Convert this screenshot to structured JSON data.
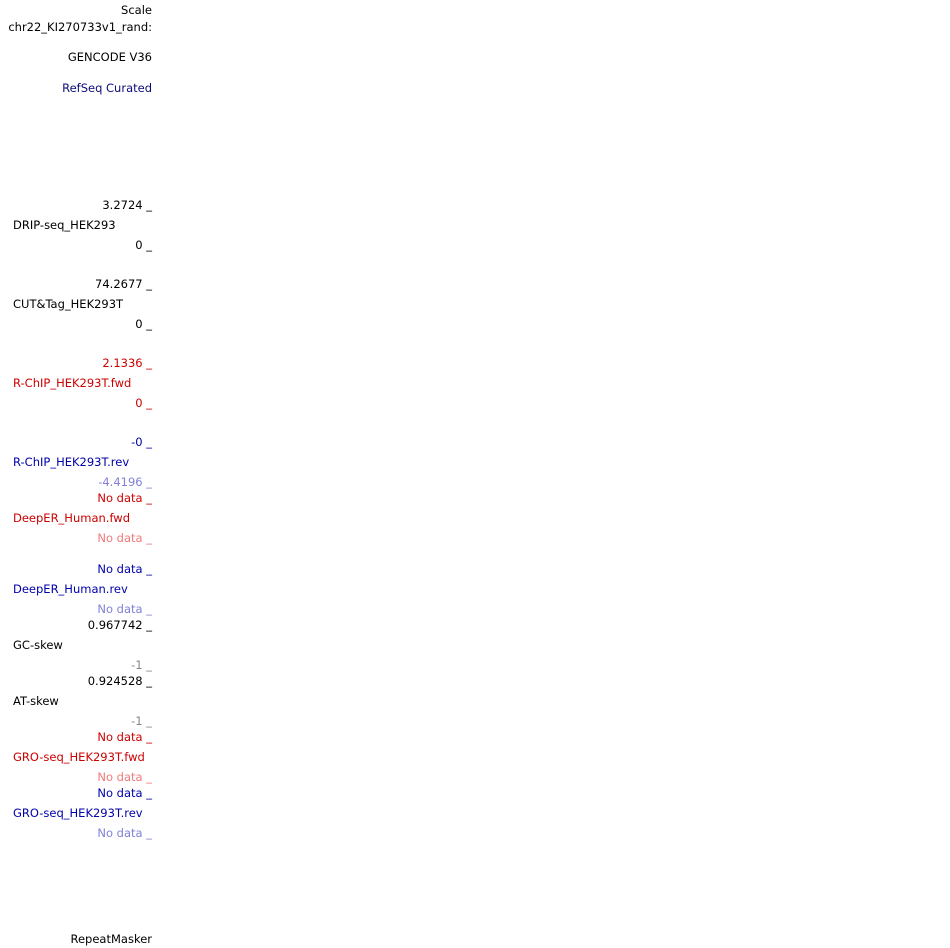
{
  "labels": {
    "scale": "Scale",
    "chrom": "chr22_KI270733v1_rand:",
    "gencode": "GENCODE V36",
    "refseq": "RefSeq Curated",
    "repeatmasker": "RepeatMasker"
  },
  "tracks": [
    {
      "name": "DRIP-seq_HEK293",
      "max": "3.2724 _",
      "min": "0 _"
    },
    {
      "name": "CUT&Tag_HEK293T",
      "max": "74.2677 _",
      "min": "0 _"
    },
    {
      "name": "R-ChIP_HEK293T.fwd",
      "max": "2.1336 _",
      "min": "0 _"
    },
    {
      "name": "R-ChIP_HEK293T.rev",
      "max": "-0 _",
      "min": "-4.4196 _"
    },
    {
      "name": "DeepER_Human.fwd",
      "max": "No data _",
      "min": "No data _"
    },
    {
      "name": "DeepER_Human.rev",
      "max": "No data _",
      "min": "No data _"
    },
    {
      "name": "GC-skew",
      "max": "0.967742 _",
      "min": "-1 _"
    },
    {
      "name": "AT-skew",
      "max": "0.924528 _",
      "min": "-1 _"
    },
    {
      "name": "GRO-seq_HEK293T.fwd",
      "max": "No data _",
      "min": "No data _"
    },
    {
      "name": "GRO-seq_HEK293T.rev",
      "max": "No data _",
      "min": "No data _"
    }
  ],
  "colors": {
    "fwd": "#cc0000",
    "rev": "#0000aa",
    "fwd_min": "#f07a7a",
    "rev_min": "#8080d8",
    "refseq": "#0c0c78"
  }
}
